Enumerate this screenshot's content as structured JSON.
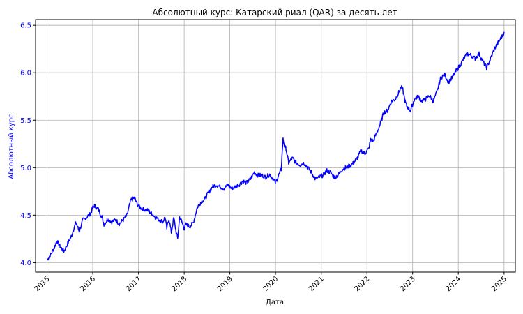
{
  "chart_data": {
    "type": "line",
    "title": "Абсолютный курс: Катарский риал (QAR) за десять лет",
    "xlabel": "Дата",
    "ylabel": "Абсолютный курс",
    "xlim": [
      "2014-10-01",
      "2025-04-01"
    ],
    "ylim": [
      3.9,
      6.56
    ],
    "grid": true,
    "x_ticks": [
      "2015",
      "2016",
      "2017",
      "2018",
      "2019",
      "2020",
      "2021",
      "2022",
      "2023",
      "2024",
      "2025"
    ],
    "y_ticks": [
      "4.0",
      "4.5",
      "5.0",
      "5.5",
      "6.0",
      "6.5"
    ],
    "colors": {
      "line": "#0000ff",
      "ylabel": "#0000ff",
      "yticks": "#0000ff",
      "grid": "#b0b0b0",
      "axes": "#000000"
    },
    "series": [
      {
        "x": [
          "2015-01-01",
          "2015-02-01",
          "2015-03-01",
          "2015-03-20",
          "2015-04-15",
          "2015-05-15",
          "2015-06-15",
          "2015-07-15",
          "2015-08-01",
          "2015-08-20",
          "2015-09-15",
          "2015-10-15",
          "2015-11-15",
          "2015-12-15",
          "2016-01-01",
          "2016-01-15",
          "2016-02-15",
          "2016-03-15",
          "2016-04-01",
          "2016-05-01",
          "2016-06-01",
          "2016-07-01",
          "2016-08-01",
          "2016-09-01",
          "2016-10-01",
          "2016-11-01",
          "2016-12-01",
          "2016-12-20",
          "2017-01-15",
          "2017-02-15",
          "2017-03-15",
          "2017-04-15",
          "2017-05-15",
          "2017-06-15",
          "2017-07-15",
          "2017-08-01",
          "2017-08-15",
          "2017-09-01",
          "2017-09-20",
          "2017-10-10",
          "2017-10-25",
          "2017-11-10",
          "2017-11-25",
          "2017-12-10",
          "2018-01-01",
          "2018-01-15",
          "2018-02-15",
          "2018-03-15",
          "2018-04-15",
          "2018-05-15",
          "2018-06-15",
          "2018-07-15",
          "2018-08-15",
          "2018-09-15",
          "2018-10-15",
          "2018-11-15",
          "2018-12-15",
          "2019-01-15",
          "2019-02-15",
          "2019-03-15",
          "2019-04-15",
          "2019-05-15",
          "2019-06-15",
          "2019-07-15",
          "2019-08-15",
          "2019-09-15",
          "2019-10-15",
          "2019-11-15",
          "2019-12-15",
          "2020-01-01",
          "2020-01-20",
          "2020-02-15",
          "2020-03-01",
          "2020-03-15",
          "2020-03-25",
          "2020-04-15",
          "2020-05-15",
          "2020-06-15",
          "2020-07-15",
          "2020-08-15",
          "2020-09-15",
          "2020-10-15",
          "2020-11-15",
          "2020-12-15",
          "2021-01-15",
          "2021-02-15",
          "2021-03-15",
          "2021-04-15",
          "2021-05-15",
          "2021-06-15",
          "2021-07-15",
          "2021-08-15",
          "2021-09-15",
          "2021-10-15",
          "2021-11-15",
          "2021-12-15",
          "2022-01-15",
          "2022-02-01",
          "2022-02-20",
          "2022-03-15",
          "2022-04-15",
          "2022-05-15",
          "2022-06-15",
          "2022-07-15",
          "2022-08-15",
          "2022-09-15",
          "2022-10-01",
          "2022-10-15",
          "2022-11-01",
          "2022-11-15",
          "2022-12-15",
          "2023-01-15",
          "2023-02-15",
          "2023-03-15",
          "2023-04-15",
          "2023-05-15",
          "2023-06-15",
          "2023-07-15",
          "2023-08-15",
          "2023-09-15",
          "2023-10-15",
          "2023-11-15",
          "2023-12-15",
          "2024-01-15",
          "2024-02-15",
          "2024-03-15",
          "2024-04-15",
          "2024-05-15",
          "2024-06-15",
          "2024-07-15",
          "2024-08-15",
          "2024-09-15",
          "2024-10-15",
          "2024-11-15",
          "2024-12-15",
          "2025-01-01"
        ],
        "values": [
          4.03,
          4.09,
          4.16,
          4.23,
          4.17,
          4.12,
          4.2,
          4.28,
          4.35,
          4.42,
          4.33,
          4.45,
          4.48,
          4.52,
          4.58,
          4.6,
          4.56,
          4.48,
          4.4,
          4.46,
          4.43,
          4.45,
          4.41,
          4.45,
          4.5,
          4.66,
          4.68,
          4.62,
          4.58,
          4.56,
          4.55,
          4.52,
          4.48,
          4.45,
          4.43,
          4.48,
          4.36,
          4.46,
          4.32,
          4.47,
          4.35,
          4.25,
          4.48,
          4.44,
          4.36,
          4.4,
          4.38,
          4.42,
          4.58,
          4.64,
          4.67,
          4.74,
          4.8,
          4.82,
          4.8,
          4.78,
          4.82,
          4.78,
          4.8,
          4.82,
          4.86,
          4.84,
          4.88,
          4.95,
          4.92,
          4.92,
          4.9,
          4.93,
          4.88,
          4.84,
          4.9,
          4.98,
          5.3,
          5.22,
          5.2,
          5.05,
          5.1,
          5.05,
          5.03,
          5.05,
          5.0,
          4.95,
          4.88,
          4.9,
          4.92,
          4.97,
          4.95,
          4.9,
          4.92,
          4.98,
          5.0,
          5.02,
          5.05,
          5.1,
          5.18,
          5.15,
          5.2,
          5.3,
          5.28,
          5.35,
          5.45,
          5.58,
          5.6,
          5.7,
          5.72,
          5.8,
          5.85,
          5.82,
          5.7,
          5.65,
          5.6,
          5.72,
          5.75,
          5.7,
          5.72,
          5.76,
          5.7,
          5.8,
          5.95,
          5.98,
          5.9,
          5.95,
          6.02,
          6.08,
          6.15,
          6.2,
          6.18,
          6.15,
          6.2,
          6.12,
          6.05,
          6.15,
          6.25,
          6.32,
          6.38,
          6.43
        ]
      }
    ]
  }
}
